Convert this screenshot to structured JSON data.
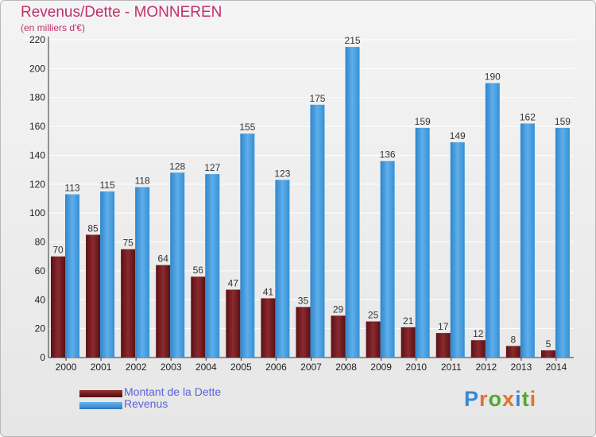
{
  "title": "Revenus/Dette - MONNEREN",
  "subtitle": "(en milliers d'€)",
  "colors": {
    "title": "#c0306a",
    "dette": "#7a1e22",
    "revenus": "#3d95d8",
    "legend_text": "#5a62d8"
  },
  "logo": {
    "letters": [
      "P",
      "r",
      "o",
      "x",
      "i",
      "t",
      "i"
    ],
    "colors": [
      "#3a87d6",
      "#e0742a",
      "#56a830",
      "#e0742a",
      "#3a87d6",
      "#56a830",
      "#e0742a"
    ]
  },
  "chart_data": {
    "type": "bar",
    "title": "Revenus/Dette - MONNEREN",
    "subtitle": "(en milliers d'€)",
    "categories": [
      "2000",
      "2001",
      "2002",
      "2003",
      "2004",
      "2005",
      "2006",
      "2007",
      "2008",
      "2009",
      "2010",
      "2011",
      "2012",
      "2013",
      "2014"
    ],
    "series": [
      {
        "name": "Montant de la Dette",
        "color": "#7a1e22",
        "values": [
          70,
          85,
          75,
          64,
          56,
          47,
          41,
          35,
          29,
          25,
          21,
          17,
          12,
          8,
          5
        ]
      },
      {
        "name": "Revenus",
        "color": "#3d95d8",
        "values": [
          113,
          115,
          118,
          128,
          127,
          155,
          123,
          175,
          215,
          136,
          159,
          149,
          190,
          162,
          159
        ]
      }
    ],
    "ylim": [
      0,
      220
    ],
    "yticks": [
      0,
      20,
      40,
      60,
      80,
      100,
      120,
      140,
      160,
      180,
      200,
      220
    ],
    "grid": true,
    "legend": "bottom-left"
  }
}
